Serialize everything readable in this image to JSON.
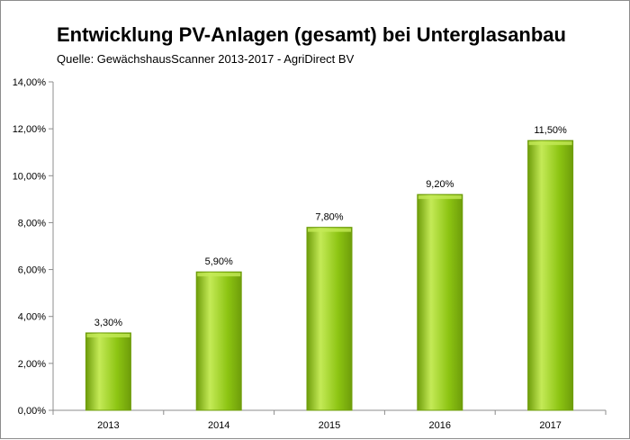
{
  "chart_data": {
    "type": "bar",
    "title": "Entwicklung PV-Anlagen (gesamt) bei Unterglasanbau",
    "subtitle": "Quelle: GewächshausScanner 2013-2017 - AgriDirect BV",
    "categories": [
      "2013",
      "2014",
      "2015",
      "2016",
      "2017"
    ],
    "values": [
      3.3,
      5.9,
      7.8,
      9.2,
      11.5
    ],
    "data_labels": [
      "3,30%",
      "5,90%",
      "7,80%",
      "9,20%",
      "11,50%"
    ],
    "y_ticks": [
      0,
      2,
      4,
      6,
      8,
      10,
      12,
      14
    ],
    "y_tick_labels": [
      "0,00%",
      "2,00%",
      "4,00%",
      "6,00%",
      "8,00%",
      "10,00%",
      "12,00%",
      "14,00%"
    ],
    "ylim": [
      0,
      14
    ],
    "xlabel": "",
    "ylabel": "",
    "grid": false,
    "legend": "none",
    "colors": {
      "bar_fill": "#8cc412",
      "bar_light": "#c4ea57",
      "bar_dark": "#6e9d0a",
      "axis": "#8c8c8c"
    }
  }
}
